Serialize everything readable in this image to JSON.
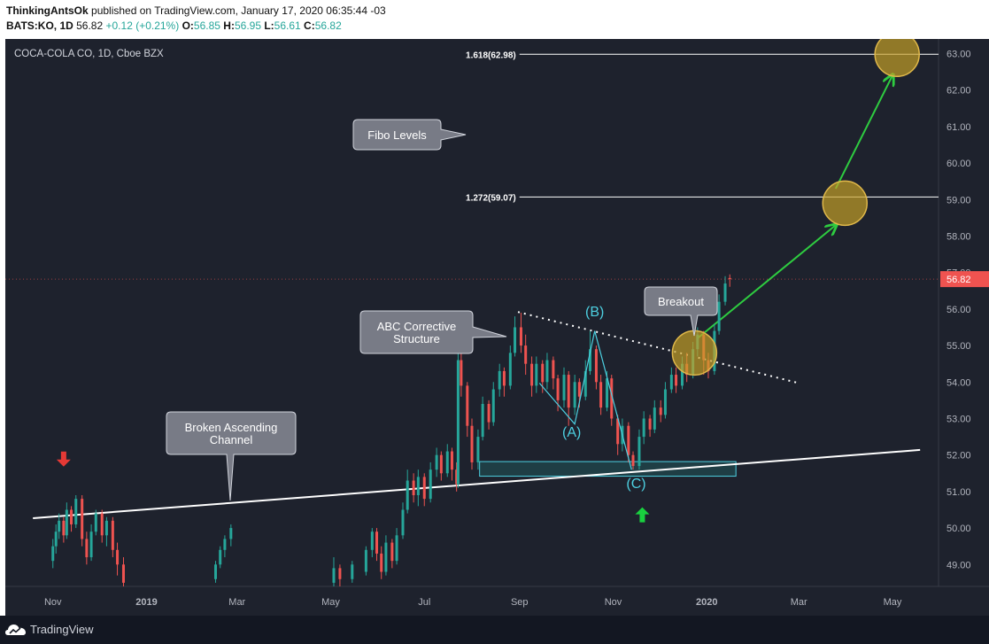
{
  "header": {
    "author": "ThinkingAntsOk",
    "published_text": "published on TradingView.com, January 17, 2020 06:35:44 -03",
    "symbol": "BATS:KO, 1D",
    "last": "56.82",
    "change": "+0.12 (+0.21%)",
    "o_label": "O:",
    "o_value": "56.85",
    "h_label": "H:",
    "h_value": "56.95",
    "l_label": "L:",
    "l_value": "56.61",
    "c_label": "C:",
    "c_value": "56.82"
  },
  "footer": {
    "brand": "TradingView"
  },
  "chart_data": {
    "type": "candlestick",
    "title": "COCA-COLA CO, 1D, Cboe BZX",
    "ylim": [
      48.4,
      63.4
    ],
    "y_ticks": [
      "63.00",
      "62.00",
      "61.00",
      "60.00",
      "59.00",
      "58.00",
      "57.00",
      "56.00",
      "55.00",
      "54.00",
      "53.00",
      "52.00",
      "51.00",
      "50.00",
      "49.00"
    ],
    "x_ticks": [
      "Nov",
      "2019",
      "Mar",
      "May",
      "Jul",
      "Sep",
      "Nov",
      "2020",
      "Mar",
      "May"
    ],
    "last_price_label": "56.82",
    "colors": {
      "up": "#26a69a",
      "down": "#ef5350",
      "background": "#1e222d",
      "highlight": "#c9a227",
      "arrow": "#2ecc40"
    },
    "candles": [
      {
        "date": "2018-11-01",
        "open": 49.1,
        "close": 49.5,
        "high": 49.7,
        "low": 48.9
      },
      {
        "date": "2018-11-03",
        "open": 49.5,
        "close": 49.9,
        "high": 50.1,
        "low": 49.3
      },
      {
        "date": "2018-11-05",
        "open": 49.9,
        "close": 50.2,
        "high": 50.4,
        "low": 49.7
      },
      {
        "date": "2018-11-08",
        "open": 50.2,
        "close": 49.8,
        "high": 50.3,
        "low": 49.6
      },
      {
        "date": "2018-11-10",
        "open": 49.8,
        "close": 50.5,
        "high": 50.7,
        "low": 49.7
      },
      {
        "date": "2018-11-13",
        "open": 50.5,
        "close": 50.1,
        "high": 50.6,
        "low": 49.9
      },
      {
        "date": "2018-11-16",
        "open": 50.1,
        "close": 50.8,
        "high": 50.9,
        "low": 50.0
      },
      {
        "date": "2018-11-20",
        "open": 50.8,
        "close": 49.7,
        "high": 50.9,
        "low": 49.5
      },
      {
        "date": "2018-11-23",
        "open": 49.7,
        "close": 49.2,
        "high": 49.9,
        "low": 49.0
      },
      {
        "date": "2018-11-26",
        "open": 49.2,
        "close": 49.9,
        "high": 50.1,
        "low": 49.1
      },
      {
        "date": "2018-11-29",
        "open": 49.9,
        "close": 50.4,
        "high": 50.5,
        "low": 49.8
      },
      {
        "date": "2018-12-03",
        "open": 50.4,
        "close": 49.8,
        "high": 50.5,
        "low": 49.6
      },
      {
        "date": "2018-12-06",
        "open": 49.8,
        "close": 50.2,
        "high": 50.3,
        "low": 49.5
      },
      {
        "date": "2018-12-10",
        "open": 50.2,
        "close": 49.4,
        "high": 50.3,
        "low": 49.2
      },
      {
        "date": "2018-12-13",
        "open": 49.4,
        "close": 49.0,
        "high": 49.6,
        "low": 48.7
      },
      {
        "date": "2018-12-17",
        "open": 49.0,
        "close": 48.5,
        "high": 49.2,
        "low": 48.4
      },
      {
        "date": "2019-02-15",
        "open": 48.6,
        "close": 49.0,
        "high": 49.1,
        "low": 48.5
      },
      {
        "date": "2019-02-18",
        "open": 49.0,
        "close": 49.4,
        "high": 49.5,
        "low": 48.9
      },
      {
        "date": "2019-02-21",
        "open": 49.4,
        "close": 49.7,
        "high": 49.8,
        "low": 49.2
      },
      {
        "date": "2019-02-25",
        "open": 49.7,
        "close": 50.0,
        "high": 50.1,
        "low": 49.5
      },
      {
        "date": "2019-05-03",
        "open": 48.5,
        "close": 48.9,
        "high": 49.2,
        "low": 48.4
      },
      {
        "date": "2019-05-07",
        "open": 48.9,
        "close": 48.6,
        "high": 49.0,
        "low": 48.4
      },
      {
        "date": "2019-05-15",
        "open": 48.6,
        "close": 49.0,
        "high": 49.1,
        "low": 48.5
      },
      {
        "date": "2019-05-24",
        "open": 48.8,
        "close": 49.4,
        "high": 49.5,
        "low": 48.7
      },
      {
        "date": "2019-05-28",
        "open": 49.4,
        "close": 49.9,
        "high": 50.0,
        "low": 49.2
      },
      {
        "date": "2019-05-31",
        "open": 49.9,
        "close": 49.3,
        "high": 50.0,
        "low": 49.1
      },
      {
        "date": "2019-06-03",
        "open": 49.3,
        "close": 48.8,
        "high": 49.5,
        "low": 48.6
      },
      {
        "date": "2019-06-06",
        "open": 48.8,
        "close": 49.6,
        "high": 49.8,
        "low": 48.7
      },
      {
        "date": "2019-06-10",
        "open": 49.6,
        "close": 49.1,
        "high": 49.7,
        "low": 48.9
      },
      {
        "date": "2019-06-13",
        "open": 49.1,
        "close": 49.8,
        "high": 50.0,
        "low": 49.0
      },
      {
        "date": "2019-06-17",
        "open": 49.8,
        "close": 50.5,
        "high": 50.7,
        "low": 49.7
      },
      {
        "date": "2019-06-20",
        "open": 50.5,
        "close": 51.3,
        "high": 51.6,
        "low": 50.4
      },
      {
        "date": "2019-06-24",
        "open": 51.3,
        "close": 50.9,
        "high": 51.5,
        "low": 50.7
      },
      {
        "date": "2019-06-27",
        "open": 50.9,
        "close": 51.4,
        "high": 51.6,
        "low": 50.6
      },
      {
        "date": "2019-07-01",
        "open": 51.4,
        "close": 50.8,
        "high": 51.5,
        "low": 50.6
      },
      {
        "date": "2019-07-05",
        "open": 50.8,
        "close": 51.6,
        "high": 51.8,
        "low": 50.7
      },
      {
        "date": "2019-07-09",
        "open": 51.6,
        "close": 52.0,
        "high": 52.2,
        "low": 51.4
      },
      {
        "date": "2019-07-12",
        "open": 52.0,
        "close": 51.5,
        "high": 52.1,
        "low": 51.3
      },
      {
        "date": "2019-07-16",
        "open": 51.5,
        "close": 52.1,
        "high": 52.3,
        "low": 51.4
      },
      {
        "date": "2019-07-19",
        "open": 52.1,
        "close": 51.6,
        "high": 52.2,
        "low": 51.3
      },
      {
        "date": "2019-07-22",
        "open": 51.6,
        "close": 51.2,
        "high": 51.8,
        "low": 51.0
      },
      {
        "date": "2019-07-23",
        "open": 51.2,
        "close": 54.6,
        "high": 54.9,
        "low": 51.1
      },
      {
        "date": "2019-07-25",
        "open": 54.6,
        "close": 53.9,
        "high": 54.8,
        "low": 53.6
      },
      {
        "date": "2019-07-29",
        "open": 53.9,
        "close": 52.8,
        "high": 54.0,
        "low": 52.5
      },
      {
        "date": "2019-08-01",
        "open": 52.8,
        "close": 51.8,
        "high": 53.0,
        "low": 51.6
      },
      {
        "date": "2019-08-05",
        "open": 51.8,
        "close": 52.5,
        "high": 52.7,
        "low": 51.6
      },
      {
        "date": "2019-08-08",
        "open": 52.5,
        "close": 53.4,
        "high": 53.6,
        "low": 52.4
      },
      {
        "date": "2019-08-12",
        "open": 53.4,
        "close": 52.9,
        "high": 53.5,
        "low": 52.7
      },
      {
        "date": "2019-08-15",
        "open": 52.9,
        "close": 53.8,
        "high": 54.0,
        "low": 52.8
      },
      {
        "date": "2019-08-19",
        "open": 53.8,
        "close": 54.3,
        "high": 54.5,
        "low": 53.6
      },
      {
        "date": "2019-08-22",
        "open": 54.3,
        "close": 53.9,
        "high": 54.4,
        "low": 53.6
      },
      {
        "date": "2019-08-26",
        "open": 53.9,
        "close": 54.8,
        "high": 55.0,
        "low": 53.8
      },
      {
        "date": "2019-08-29",
        "open": 54.8,
        "close": 55.5,
        "high": 55.8,
        "low": 54.7
      },
      {
        "date": "2019-09-02",
        "open": 55.5,
        "close": 55.0,
        "high": 55.9,
        "low": 54.8
      },
      {
        "date": "2019-09-05",
        "open": 55.0,
        "close": 54.5,
        "high": 55.3,
        "low": 54.2
      },
      {
        "date": "2019-09-09",
        "open": 54.5,
        "close": 53.9,
        "high": 54.7,
        "low": 53.6
      },
      {
        "date": "2019-09-12",
        "open": 53.9,
        "close": 54.5,
        "high": 54.7,
        "low": 53.7
      },
      {
        "date": "2019-09-16",
        "open": 54.5,
        "close": 54.0,
        "high": 54.6,
        "low": 53.7
      },
      {
        "date": "2019-09-19",
        "open": 54.0,
        "close": 54.6,
        "high": 54.8,
        "low": 53.8
      },
      {
        "date": "2019-09-23",
        "open": 54.6,
        "close": 54.1,
        "high": 54.7,
        "low": 53.8
      },
      {
        "date": "2019-09-26",
        "open": 54.1,
        "close": 53.5,
        "high": 54.2,
        "low": 53.2
      },
      {
        "date": "2019-09-30",
        "open": 53.5,
        "close": 54.2,
        "high": 54.4,
        "low": 53.3
      },
      {
        "date": "2019-10-03",
        "open": 54.2,
        "close": 53.3,
        "high": 54.3,
        "low": 52.8
      },
      {
        "date": "2019-10-07",
        "open": 53.3,
        "close": 54.0,
        "high": 54.2,
        "low": 53.1
      },
      {
        "date": "2019-10-10",
        "open": 54.0,
        "close": 53.6,
        "high": 54.1,
        "low": 53.3
      },
      {
        "date": "2019-10-14",
        "open": 53.6,
        "close": 54.3,
        "high": 54.6,
        "low": 53.5
      },
      {
        "date": "2019-10-17",
        "open": 54.3,
        "close": 54.9,
        "high": 55.4,
        "low": 54.2
      },
      {
        "date": "2019-10-21",
        "open": 54.9,
        "close": 54.0,
        "high": 55.0,
        "low": 53.8
      },
      {
        "date": "2019-10-24",
        "open": 54.0,
        "close": 53.3,
        "high": 54.2,
        "low": 53.1
      },
      {
        "date": "2019-10-28",
        "open": 53.3,
        "close": 54.1,
        "high": 54.3,
        "low": 53.2
      },
      {
        "date": "2019-10-31",
        "open": 54.1,
        "close": 53.0,
        "high": 54.2,
        "low": 52.8
      },
      {
        "date": "2019-11-04",
        "open": 53.0,
        "close": 52.3,
        "high": 53.1,
        "low": 52.0
      },
      {
        "date": "2019-11-07",
        "open": 52.3,
        "close": 52.8,
        "high": 53.0,
        "low": 52.1
      },
      {
        "date": "2019-11-11",
        "open": 52.8,
        "close": 52.0,
        "high": 52.9,
        "low": 51.8
      },
      {
        "date": "2019-11-14",
        "open": 52.0,
        "close": 51.7,
        "high": 52.1,
        "low": 51.6
      },
      {
        "date": "2019-11-18",
        "open": 51.7,
        "close": 52.5,
        "high": 52.7,
        "low": 51.6
      },
      {
        "date": "2019-11-21",
        "open": 52.5,
        "close": 53.0,
        "high": 53.2,
        "low": 52.3
      },
      {
        "date": "2019-11-25",
        "open": 53.0,
        "close": 52.7,
        "high": 53.1,
        "low": 52.5
      },
      {
        "date": "2019-11-28",
        "open": 52.7,
        "close": 53.3,
        "high": 53.5,
        "low": 52.6
      },
      {
        "date": "2019-12-02",
        "open": 53.3,
        "close": 53.1,
        "high": 53.5,
        "low": 52.9
      },
      {
        "date": "2019-12-05",
        "open": 53.1,
        "close": 53.8,
        "high": 54.0,
        "low": 53.0
      },
      {
        "date": "2019-12-09",
        "open": 53.8,
        "close": 54.2,
        "high": 54.4,
        "low": 53.7
      },
      {
        "date": "2019-12-12",
        "open": 54.2,
        "close": 53.9,
        "high": 54.4,
        "low": 53.7
      },
      {
        "date": "2019-12-16",
        "open": 53.9,
        "close": 54.5,
        "high": 54.7,
        "low": 53.8
      },
      {
        "date": "2019-12-19",
        "open": 54.5,
        "close": 54.2,
        "high": 54.8,
        "low": 54.0
      },
      {
        "date": "2019-12-23",
        "open": 54.2,
        "close": 54.9,
        "high": 55.1,
        "low": 54.1
      },
      {
        "date": "2019-12-26",
        "open": 54.9,
        "close": 55.3,
        "high": 55.5,
        "low": 54.7
      },
      {
        "date": "2019-12-30",
        "open": 55.3,
        "close": 54.6,
        "high": 55.4,
        "low": 54.2
      },
      {
        "date": "2020-01-02",
        "open": 54.6,
        "close": 54.3,
        "high": 54.8,
        "low": 54.1
      },
      {
        "date": "2020-01-06",
        "open": 54.3,
        "close": 55.4,
        "high": 55.6,
        "low": 54.2
      },
      {
        "date": "2020-01-09",
        "open": 55.4,
        "close": 56.2,
        "high": 56.4,
        "low": 55.3
      },
      {
        "date": "2020-01-13",
        "open": 56.2,
        "close": 56.7,
        "high": 56.9,
        "low": 56.1
      },
      {
        "date": "2020-01-16",
        "open": 56.85,
        "close": 56.82,
        "high": 56.95,
        "low": 56.61
      }
    ],
    "lines": [
      {
        "name": "channel-line",
        "style": "solid",
        "from": {
          "date": "2018-10-19",
          "price": 50.27
        },
        "to": {
          "date": "2020-05-19",
          "price": 52.14
        }
      },
      {
        "name": "resistance-trendline",
        "style": "dotted",
        "from": {
          "date": "2019-08-31",
          "price": 55.92
        },
        "to": {
          "date": "2020-03-01",
          "price": 53.97
        }
      },
      {
        "name": "abc-wave",
        "style": "solid",
        "points": [
          {
            "date": "2019-09-14",
            "price": 53.97
          },
          {
            "date": "2019-10-07",
            "price": 52.85
          },
          {
            "date": "2019-10-20",
            "price": 55.4
          },
          {
            "date": "2019-11-13",
            "price": 51.6
          }
        ]
      },
      {
        "name": "target-arrow-1",
        "style": "arrow",
        "from": {
          "date": "2019-12-26",
          "price": 55.2
        },
        "to": {
          "date": "2020-03-25",
          "price": 58.3
        }
      },
      {
        "name": "target-arrow-2",
        "style": "arrow",
        "from": {
          "date": "2020-03-25",
          "price": 59.3
        },
        "to": {
          "date": "2020-05-01",
          "price": 62.4
        }
      }
    ],
    "levels": [
      {
        "label": "1.618(62.98)",
        "price": 62.98,
        "from": "2019-09-01"
      },
      {
        "label": "1.272(59.07)",
        "price": 59.07,
        "from": "2019-09-01"
      }
    ],
    "zone": {
      "from": "2019-08-06",
      "to": "2020-01-20",
      "top": 51.82,
      "bottom": 51.42
    },
    "circles": [
      {
        "name": "breakout-circle",
        "date": "2019-12-24",
        "price": 54.8
      },
      {
        "name": "target-circle-1",
        "date": "2020-03-31",
        "price": 58.9
      },
      {
        "name": "target-circle-2",
        "date": "2020-05-04",
        "price": 62.98
      }
    ],
    "wave_labels": [
      {
        "name": "wave-a-label",
        "text": "(A)",
        "date": "2019-10-05",
        "price": 52.5
      },
      {
        "name": "wave-b-label",
        "text": "(B)",
        "date": "2019-10-20",
        "price": 55.8
      },
      {
        "name": "wave-c-label",
        "text": "(C)",
        "date": "2019-11-16",
        "price": 51.1
      }
    ],
    "markers": [
      {
        "name": "sell-arrow",
        "direction": "down",
        "date": "2018-11-08",
        "price": 51.9
      },
      {
        "name": "buy-arrow",
        "direction": "up",
        "date": "2019-11-20",
        "price": 50.35
      }
    ],
    "callouts": [
      {
        "name": "callout-fibo-levels",
        "text": [
          "Fibo Levels"
        ]
      },
      {
        "name": "callout-abc",
        "text": [
          "ABC Corrective",
          "Structure"
        ]
      },
      {
        "name": "callout-breakout",
        "text": [
          "Breakout"
        ]
      },
      {
        "name": "callout-broken-channel",
        "text": [
          "Broken Ascending",
          "Channel"
        ]
      }
    ]
  }
}
